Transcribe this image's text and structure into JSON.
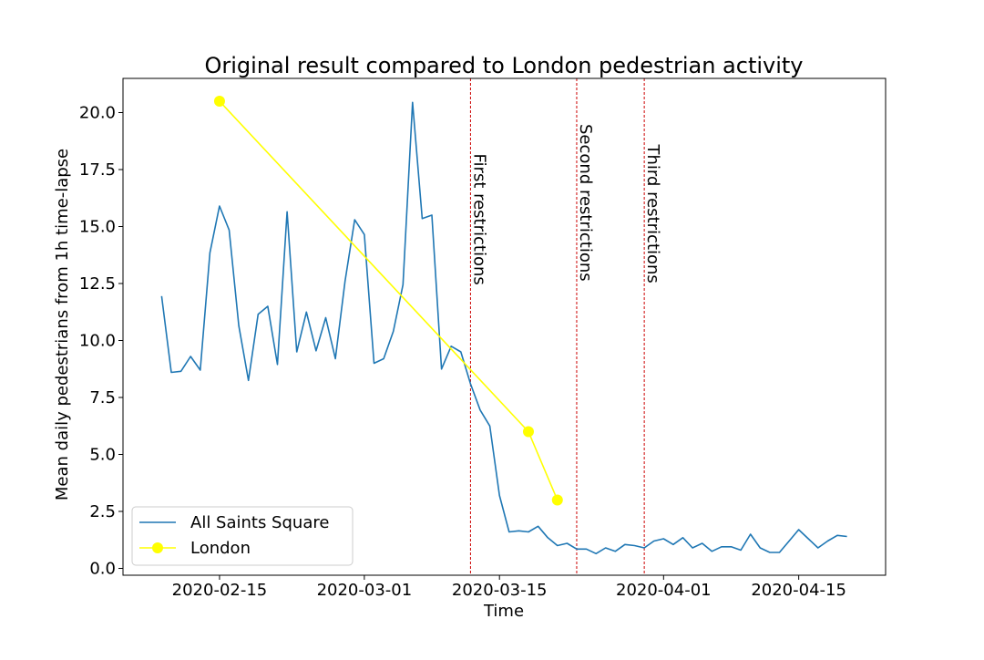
{
  "chart_data": {
    "type": "line",
    "title": "Original result compared to London pedestrian activity",
    "xlabel": "Time",
    "ylabel": "Mean daily pedestrians from 1h time-lapse",
    "x_range": [
      "2020-02-05",
      "2020-04-24"
    ],
    "ylim": [
      -0.3,
      21.5
    ],
    "x_ticks": [
      "2020-02-15",
      "2020-03-01",
      "2020-03-15",
      "2020-04-01",
      "2020-04-15"
    ],
    "y_ticks": [
      "0.0",
      "2.5",
      "5.0",
      "7.5",
      "10.0",
      "12.5",
      "15.0",
      "17.5",
      "20.0"
    ],
    "grid": false,
    "legend_position": "lower-left",
    "series": [
      {
        "name": "All Saints Square",
        "color": "#1f77b4",
        "marker": "none",
        "x": [
          "2020-02-09",
          "2020-02-10",
          "2020-02-11",
          "2020-02-12",
          "2020-02-13",
          "2020-02-14",
          "2020-02-15",
          "2020-02-16",
          "2020-02-17",
          "2020-02-18",
          "2020-02-19",
          "2020-02-20",
          "2020-02-21",
          "2020-02-22",
          "2020-02-23",
          "2020-02-24",
          "2020-02-25",
          "2020-02-26",
          "2020-02-27",
          "2020-02-28",
          "2020-02-29",
          "2020-03-01",
          "2020-03-02",
          "2020-03-03",
          "2020-03-04",
          "2020-03-05",
          "2020-03-06",
          "2020-03-07",
          "2020-03-08",
          "2020-03-09",
          "2020-03-10",
          "2020-03-11",
          "2020-03-12",
          "2020-03-13",
          "2020-03-14",
          "2020-03-15",
          "2020-03-16",
          "2020-03-17",
          "2020-03-18",
          "2020-03-19",
          "2020-03-20",
          "2020-03-21",
          "2020-03-22",
          "2020-03-23",
          "2020-03-24",
          "2020-03-25",
          "2020-03-26",
          "2020-03-27",
          "2020-03-28",
          "2020-03-29",
          "2020-03-30",
          "2020-03-31",
          "2020-04-01",
          "2020-04-02",
          "2020-04-03",
          "2020-04-04",
          "2020-04-05",
          "2020-04-06",
          "2020-04-07",
          "2020-04-08",
          "2020-04-09",
          "2020-04-10",
          "2020-04-11",
          "2020-04-12",
          "2020-04-13",
          "2020-04-14",
          "2020-04-15",
          "2020-04-16",
          "2020-04-17",
          "2020-04-18",
          "2020-04-19",
          "2020-04-20"
        ],
        "y": [
          11.95,
          8.6,
          8.65,
          9.3,
          8.7,
          13.85,
          15.9,
          14.85,
          10.65,
          8.25,
          11.15,
          11.5,
          8.95,
          15.65,
          9.5,
          11.25,
          9.55,
          11.0,
          9.2,
          12.6,
          15.3,
          14.65,
          9.0,
          9.2,
          10.4,
          12.45,
          20.45,
          15.35,
          15.5,
          8.75,
          9.75,
          9.5,
          8.1,
          6.95,
          6.25,
          3.2,
          1.6,
          1.65,
          1.6,
          1.85,
          1.35,
          1.0,
          1.1,
          0.85,
          0.85,
          0.65,
          0.9,
          0.75,
          1.05,
          1.0,
          0.9,
          1.2,
          1.3,
          1.05,
          1.35,
          0.9,
          1.1,
          0.75,
          0.95,
          0.95,
          0.8,
          1.5,
          0.9,
          0.7,
          0.7,
          1.2,
          1.7,
          1.3,
          0.9,
          1.2,
          1.45,
          1.4
        ]
      },
      {
        "name": "London",
        "color": "#ffff00",
        "marker": "circle",
        "x": [
          "2020-02-15",
          "2020-03-18",
          "2020-03-21"
        ],
        "y": [
          20.5,
          6.0,
          3.0
        ]
      }
    ],
    "vertical_lines": [
      {
        "x": "2020-03-12",
        "label": "First restrictions",
        "color": "#cc0000",
        "label_top_value": 18.2
      },
      {
        "x": "2020-03-23",
        "label": "Second restrictions",
        "color": "#cc0000",
        "label_top_value": 19.5
      },
      {
        "x": "2020-03-30",
        "label": "Third restrictions",
        "color": "#cc0000",
        "label_top_value": 18.6
      }
    ]
  }
}
